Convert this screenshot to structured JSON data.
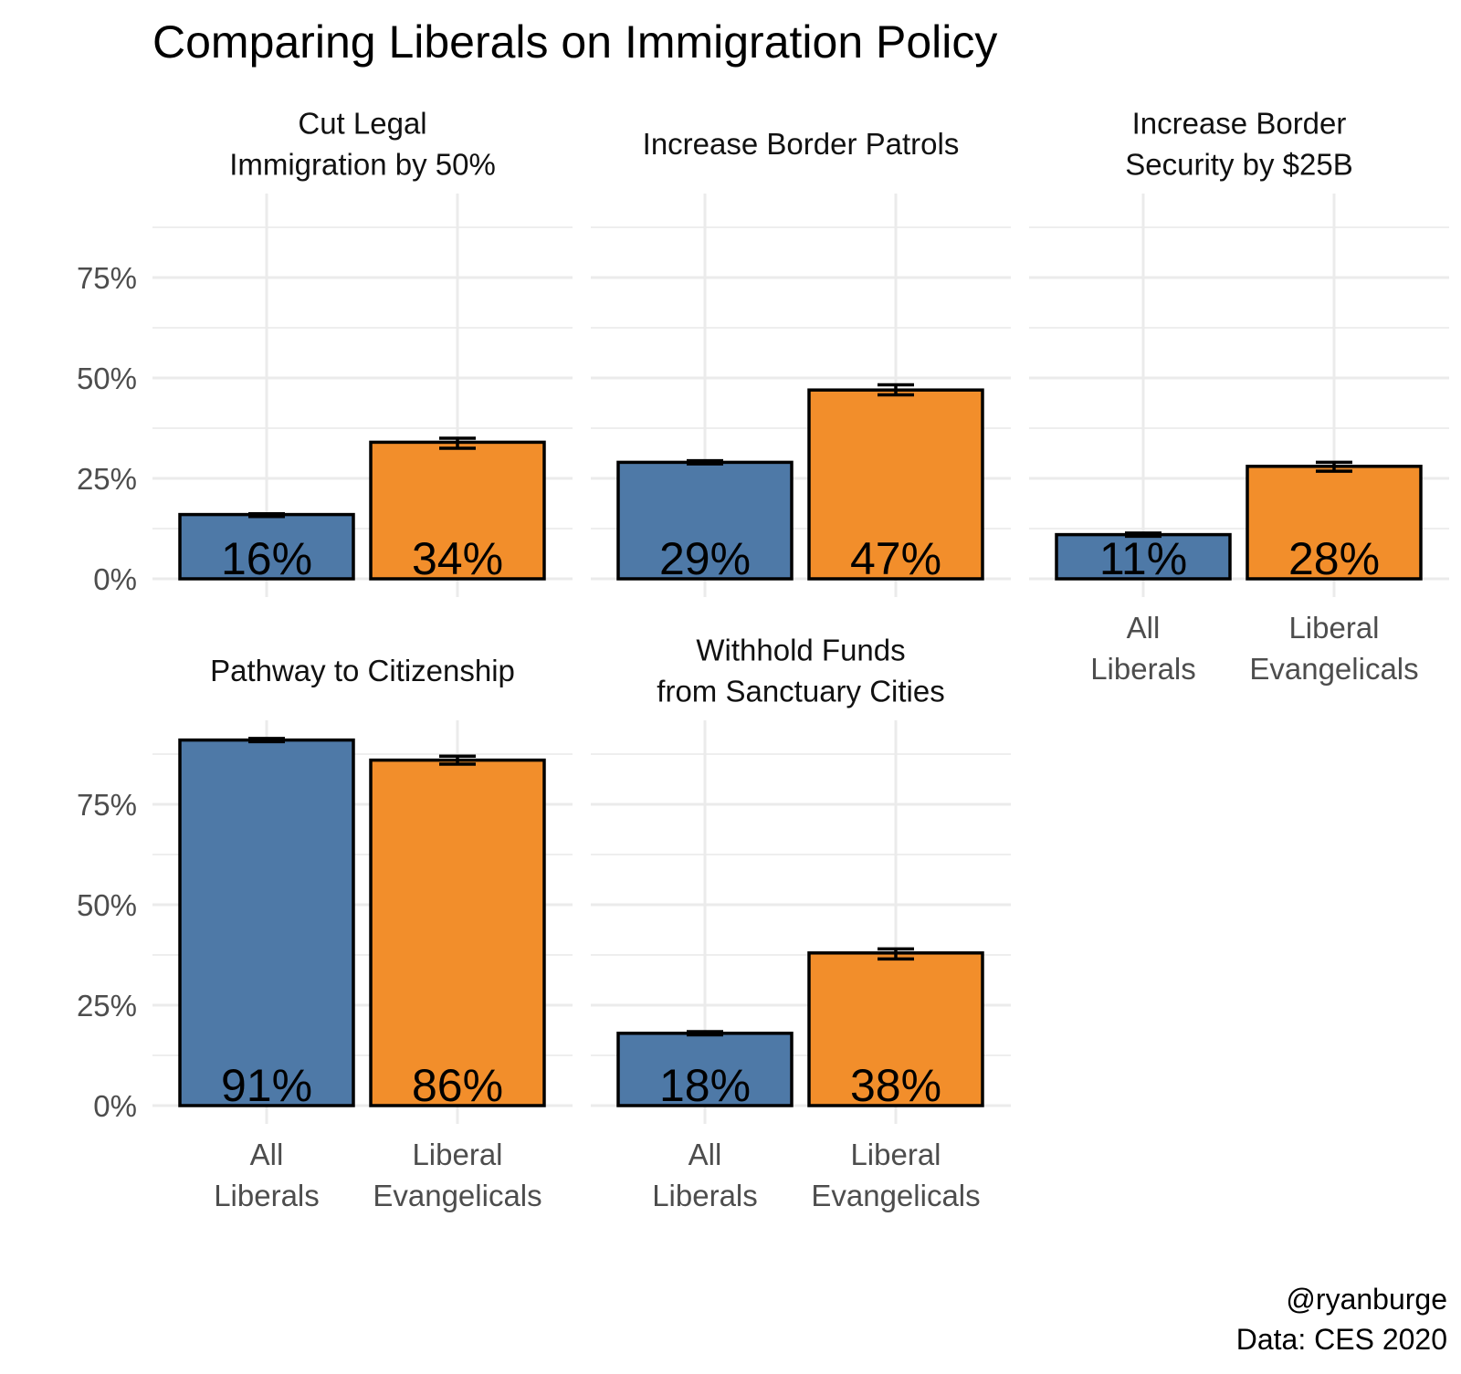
{
  "chart_data": {
    "type": "bar",
    "title": "Comparing Liberals on Immigration Policy",
    "xlabel": "",
    "ylabel": "",
    "ylim": [
      0,
      0.94
    ],
    "y_ticks": [
      0,
      0.25,
      0.5,
      0.75
    ],
    "y_tick_labels": [
      "0%",
      "25%",
      "50%",
      "75%"
    ],
    "grid": true,
    "legend": "none",
    "categories": [
      "All\nLiberals",
      "Liberal\nEvangelicals"
    ],
    "category_lines": [
      [
        "All",
        "Liberals"
      ],
      [
        "Liberal",
        "Evangelicals"
      ]
    ],
    "colors": {
      "All Liberals": "#4e79a7",
      "Liberal Evangelicals": "#f28e2b"
    },
    "panels": [
      {
        "title": [
          "Cut Legal",
          "Immigration by 50%"
        ],
        "values": [
          0.16,
          0.34
        ],
        "labels": [
          "16%",
          "34%"
        ],
        "ci": [
          [
            0.155,
            0.162
          ],
          [
            0.325,
            0.35
          ]
        ]
      },
      {
        "title": [
          "Increase Border Patrols"
        ],
        "values": [
          0.29,
          0.47
        ],
        "labels": [
          "29%",
          "47%"
        ],
        "ci": [
          [
            0.286,
            0.294
          ],
          [
            0.458,
            0.483
          ]
        ]
      },
      {
        "title": [
          "Increase Border",
          "Security by $25B"
        ],
        "values": [
          0.11,
          0.28
        ],
        "labels": [
          "11%",
          "28%"
        ],
        "ci": [
          [
            0.106,
            0.114
          ],
          [
            0.268,
            0.29
          ]
        ]
      },
      {
        "title": [
          "Pathway to Citizenship"
        ],
        "values": [
          0.91,
          0.86
        ],
        "labels": [
          "91%",
          "86%"
        ],
        "ci": [
          [
            0.906,
            0.914
          ],
          [
            0.85,
            0.87
          ]
        ]
      },
      {
        "title": [
          "Withhold Funds",
          "from Sanctuary Cities"
        ],
        "values": [
          0.18,
          0.38
        ],
        "labels": [
          "18%",
          "38%"
        ],
        "ci": [
          [
            0.176,
            0.184
          ],
          [
            0.365,
            0.39
          ]
        ]
      }
    ],
    "caption": [
      "@ryanburge",
      "Data: CES 2020"
    ]
  }
}
